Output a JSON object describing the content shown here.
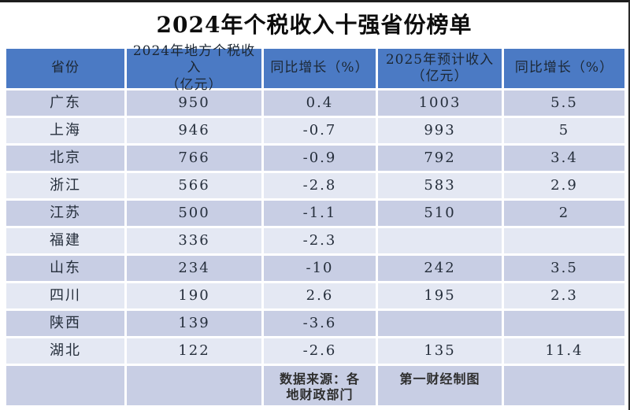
{
  "title": "2024年个税收入十强省份榜单",
  "table": {
    "columns": [
      "省份",
      "2024年地方个税收入\n（亿元）",
      "同比增长（%）",
      "2025年预计收入\n（亿元）",
      "同比增长（%）"
    ],
    "rows": [
      [
        "广东",
        "950",
        "0.4",
        "1003",
        "5.5"
      ],
      [
        "上海",
        "946",
        "-0.7",
        "993",
        "5"
      ],
      [
        "北京",
        "766",
        "-0.9",
        "792",
        "3.4"
      ],
      [
        "浙江",
        "566",
        "-2.8",
        "583",
        "2.9"
      ],
      [
        "江苏",
        "500",
        "-1.1",
        "510",
        "2"
      ],
      [
        "福建",
        "336",
        "-2.3",
        "",
        ""
      ],
      [
        "山东",
        "234",
        "-10",
        "242",
        "3.5"
      ],
      [
        "四川",
        "190",
        "2.6",
        "195",
        "2.3"
      ],
      [
        "陕西",
        "139",
        "-3.6",
        "",
        ""
      ],
      [
        "湖北",
        "122",
        "-2.6",
        "135",
        "11.4"
      ]
    ],
    "footer": {
      "source": "数据来源：各\n地财政部门",
      "credit": "第一财经制图"
    }
  },
  "colors": {
    "header_bg": "#4b7ac4",
    "header_text": "#1c2733",
    "row_odd": "#c8cee4",
    "row_even": "#e4e8f3",
    "cell_text": "#252e3b"
  }
}
